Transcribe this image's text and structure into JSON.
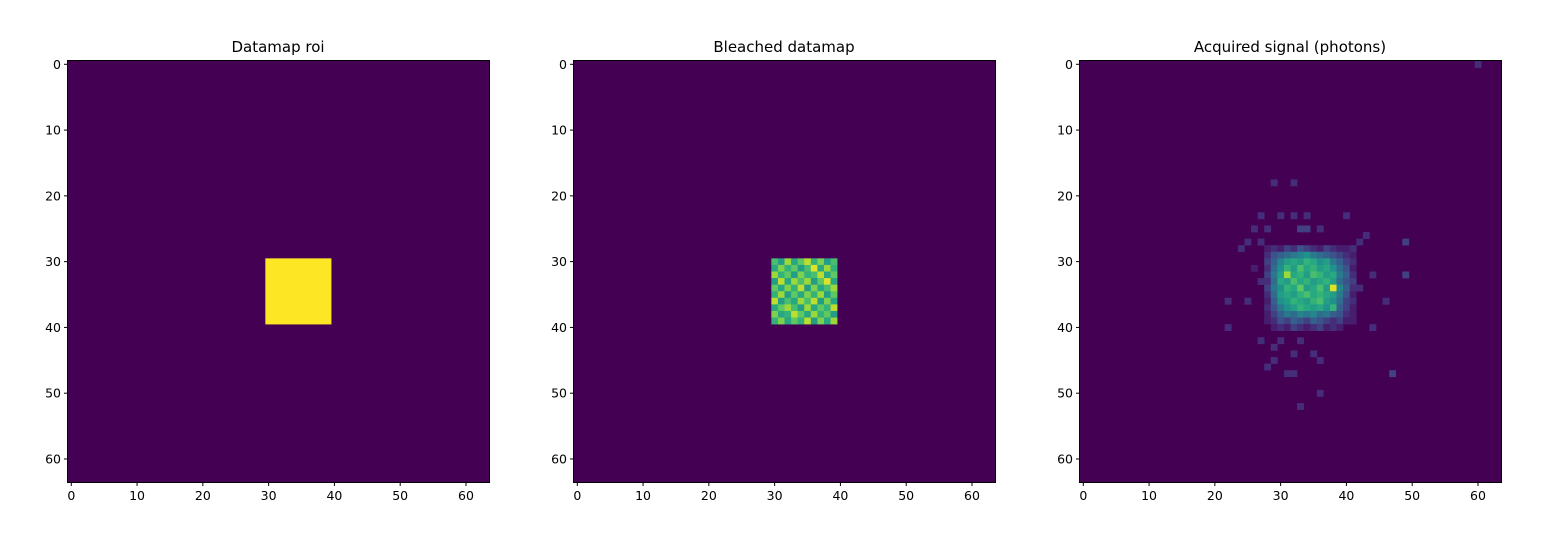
{
  "chart_data": [
    {
      "type": "heatmap",
      "title": "Datamap roi",
      "xlabel": "",
      "ylabel": "",
      "xlim": [
        -0.5,
        63.5
      ],
      "ylim": [
        63.5,
        -0.5
      ],
      "x_ticks": [
        0,
        10,
        20,
        30,
        40,
        50,
        60
      ],
      "y_ticks": [
        0,
        10,
        20,
        30,
        40,
        50,
        60
      ],
      "colormap": "viridis",
      "background_value": 0,
      "cells": [
        {
          "rect": [
            30,
            30,
            10,
            10
          ],
          "value": 1
        }
      ]
    },
    {
      "type": "heatmap",
      "title": "Bleached datamap",
      "xlabel": "",
      "ylabel": "",
      "xlim": [
        -0.5,
        63.5
      ],
      "ylim": [
        63.5,
        -0.5
      ],
      "x_ticks": [
        0,
        10,
        20,
        30,
        40,
        50,
        60
      ],
      "y_ticks": [
        0,
        10,
        20,
        30,
        40,
        50,
        60
      ],
      "colormap": "viridis",
      "background_value": 0,
      "block": {
        "x0": 30,
        "y0": 30,
        "values": [
          [
            0.7,
            0.55,
            0.85,
            0.6,
            0.75,
            0.9,
            0.65,
            0.8,
            0.55,
            0.7
          ],
          [
            0.6,
            0.8,
            0.65,
            0.75,
            0.55,
            0.7,
            0.95,
            0.6,
            0.85,
            0.65
          ],
          [
            0.85,
            0.65,
            0.75,
            0.55,
            0.8,
            0.65,
            0.7,
            0.9,
            0.6,
            0.75
          ],
          [
            0.55,
            0.9,
            0.6,
            0.85,
            0.7,
            0.85,
            0.55,
            0.75,
            0.95,
            0.6
          ],
          [
            0.75,
            0.6,
            0.8,
            0.65,
            0.9,
            0.55,
            0.8,
            0.6,
            0.7,
            0.85
          ],
          [
            0.65,
            0.85,
            0.55,
            0.75,
            0.6,
            0.8,
            0.65,
            0.85,
            0.55,
            0.75
          ],
          [
            0.9,
            0.55,
            0.7,
            0.6,
            0.85,
            0.7,
            0.9,
            0.55,
            0.8,
            0.6
          ],
          [
            0.6,
            0.75,
            0.85,
            0.7,
            0.55,
            0.85,
            0.6,
            0.75,
            0.65,
            0.9
          ],
          [
            0.8,
            0.6,
            0.65,
            0.9,
            0.75,
            0.6,
            0.85,
            0.65,
            0.75,
            0.55
          ],
          [
            0.65,
            0.8,
            0.6,
            0.75,
            0.65,
            0.9,
            0.55,
            0.8,
            0.6,
            0.85
          ]
        ]
      }
    },
    {
      "type": "heatmap",
      "title": "Acquired signal (photons)",
      "xlabel": "",
      "ylabel": "",
      "xlim": [
        -0.5,
        63.5
      ],
      "ylim": [
        63.5,
        -0.5
      ],
      "x_ticks": [
        0,
        10,
        20,
        30,
        40,
        50,
        60
      ],
      "y_ticks": [
        0,
        10,
        20,
        30,
        40,
        50,
        60
      ],
      "colormap": "viridis",
      "background_value": 0,
      "block": {
        "x0": 28,
        "y0": 28,
        "values": [
          [
            0.1,
            0.15,
            0.1,
            0.2,
            0.15,
            0.25,
            0.2,
            0.15,
            0.1,
            0.2,
            0.15,
            0.1,
            0.1,
            0.15
          ],
          [
            0.15,
            0.25,
            0.3,
            0.35,
            0.4,
            0.45,
            0.5,
            0.4,
            0.35,
            0.3,
            0.25,
            0.2,
            0.15,
            0.1
          ],
          [
            0.2,
            0.3,
            0.45,
            0.55,
            0.6,
            0.55,
            0.65,
            0.6,
            0.5,
            0.55,
            0.4,
            0.3,
            0.2,
            0.15
          ],
          [
            0.15,
            0.35,
            0.5,
            0.65,
            0.55,
            0.7,
            0.6,
            0.65,
            0.55,
            0.6,
            0.5,
            0.35,
            0.25,
            0.1
          ],
          [
            0.2,
            0.4,
            0.55,
            0.85,
            0.6,
            0.65,
            0.55,
            0.7,
            0.65,
            0.55,
            0.6,
            0.4,
            0.3,
            0.15
          ],
          [
            0.15,
            0.35,
            0.6,
            0.55,
            0.7,
            0.6,
            0.65,
            0.55,
            0.6,
            0.65,
            0.55,
            0.35,
            0.25,
            0.2
          ],
          [
            0.2,
            0.4,
            0.5,
            0.65,
            0.6,
            0.75,
            0.55,
            0.6,
            0.7,
            0.55,
            0.95,
            0.45,
            0.3,
            0.15
          ],
          [
            0.15,
            0.35,
            0.55,
            0.6,
            0.55,
            0.65,
            0.7,
            0.6,
            0.65,
            0.6,
            0.55,
            0.4,
            0.25,
            0.1
          ],
          [
            0.1,
            0.3,
            0.5,
            0.55,
            0.65,
            0.6,
            0.55,
            0.65,
            0.7,
            0.55,
            0.5,
            0.35,
            0.2,
            0.15
          ],
          [
            0.15,
            0.25,
            0.4,
            0.5,
            0.55,
            0.65,
            0.6,
            0.55,
            0.6,
            0.5,
            0.65,
            0.3,
            0.2,
            0.1
          ],
          [
            0.1,
            0.2,
            0.3,
            0.4,
            0.35,
            0.45,
            0.4,
            0.45,
            0.35,
            0.4,
            0.3,
            0.25,
            0.15,
            0.1
          ],
          [
            0.1,
            0.15,
            0.25,
            0.2,
            0.3,
            0.25,
            0.2,
            0.3,
            0.25,
            0.2,
            0.15,
            0.2,
            0.1,
            0.1
          ],
          [
            0.0,
            0.1,
            0.15,
            0.1,
            0.2,
            0.15,
            0.1,
            0.15,
            0.2,
            0.1,
            0.15,
            0.1,
            0.0,
            0.0
          ]
        ]
      },
      "scatter_pixels": [
        {
          "x": 60,
          "y": 0,
          "v": 0.15
        },
        {
          "x": 29,
          "y": 18,
          "v": 0.15
        },
        {
          "x": 32,
          "y": 18,
          "v": 0.15
        },
        {
          "x": 27,
          "y": 23,
          "v": 0.15
        },
        {
          "x": 30,
          "y": 23,
          "v": 0.15
        },
        {
          "x": 32,
          "y": 23,
          "v": 0.15
        },
        {
          "x": 34,
          "y": 23,
          "v": 0.15
        },
        {
          "x": 40,
          "y": 23,
          "v": 0.15
        },
        {
          "x": 26,
          "y": 25,
          "v": 0.15
        },
        {
          "x": 28,
          "y": 25,
          "v": 0.15
        },
        {
          "x": 33,
          "y": 25,
          "v": 0.2
        },
        {
          "x": 34,
          "y": 25,
          "v": 0.2
        },
        {
          "x": 36,
          "y": 25,
          "v": 0.15
        },
        {
          "x": 43,
          "y": 26,
          "v": 0.15
        },
        {
          "x": 25,
          "y": 27,
          "v": 0.15
        },
        {
          "x": 27,
          "y": 27,
          "v": 0.15
        },
        {
          "x": 42,
          "y": 27,
          "v": 0.15
        },
        {
          "x": 49,
          "y": 27,
          "v": 0.2
        },
        {
          "x": 24,
          "y": 28,
          "v": 0.15
        },
        {
          "x": 41,
          "y": 28,
          "v": 0.15
        },
        {
          "x": 26,
          "y": 31,
          "v": 0.1
        },
        {
          "x": 44,
          "y": 32,
          "v": 0.15
        },
        {
          "x": 49,
          "y": 32,
          "v": 0.2
        },
        {
          "x": 27,
          "y": 33,
          "v": 0.15
        },
        {
          "x": 42,
          "y": 34,
          "v": 0.15
        },
        {
          "x": 22,
          "y": 36,
          "v": 0.15
        },
        {
          "x": 25,
          "y": 36,
          "v": 0.15
        },
        {
          "x": 46,
          "y": 36,
          "v": 0.15
        },
        {
          "x": 22,
          "y": 40,
          "v": 0.15
        },
        {
          "x": 44,
          "y": 40,
          "v": 0.15
        },
        {
          "x": 27,
          "y": 42,
          "v": 0.15
        },
        {
          "x": 30,
          "y": 42,
          "v": 0.15
        },
        {
          "x": 33,
          "y": 42,
          "v": 0.15
        },
        {
          "x": 29,
          "y": 43,
          "v": 0.15
        },
        {
          "x": 32,
          "y": 44,
          "v": 0.15
        },
        {
          "x": 35,
          "y": 44,
          "v": 0.15
        },
        {
          "x": 29,
          "y": 45,
          "v": 0.15
        },
        {
          "x": 36,
          "y": 45,
          "v": 0.15
        },
        {
          "x": 28,
          "y": 46,
          "v": 0.15
        },
        {
          "x": 31,
          "y": 47,
          "v": 0.15
        },
        {
          "x": 32,
          "y": 47,
          "v": 0.15
        },
        {
          "x": 47,
          "y": 47,
          "v": 0.2
        },
        {
          "x": 36,
          "y": 50,
          "v": 0.15
        },
        {
          "x": 33,
          "y": 52,
          "v": 0.15
        }
      ]
    }
  ]
}
